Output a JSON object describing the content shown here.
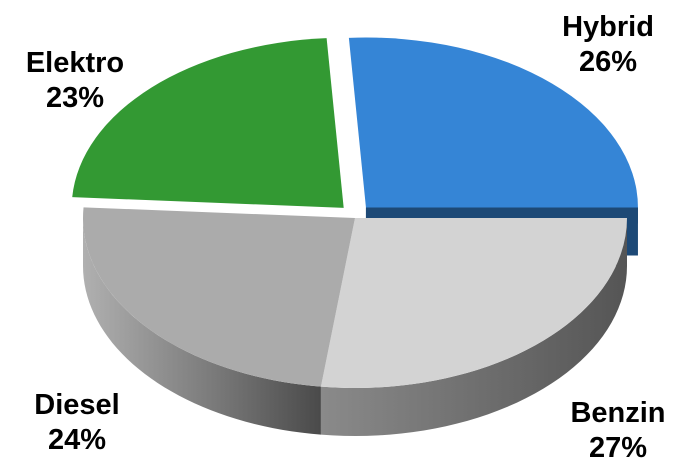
{
  "chart_data": {
    "type": "pie",
    "title": "",
    "style": "3d-exploded",
    "slices": [
      {
        "label": "Hybrid",
        "value": 26,
        "value_label": "26%",
        "color": "#3585d6",
        "exploded": true
      },
      {
        "label": "Benzin",
        "value": 27,
        "value_label": "27%",
        "color": "#d3d3d3",
        "exploded": false
      },
      {
        "label": "Diesel",
        "value": 24,
        "value_label": "24%",
        "color": "#ababab",
        "exploded": false
      },
      {
        "label": "Elektro",
        "value": 23,
        "value_label": "23%",
        "color": "#339933",
        "exploded": true
      }
    ]
  }
}
